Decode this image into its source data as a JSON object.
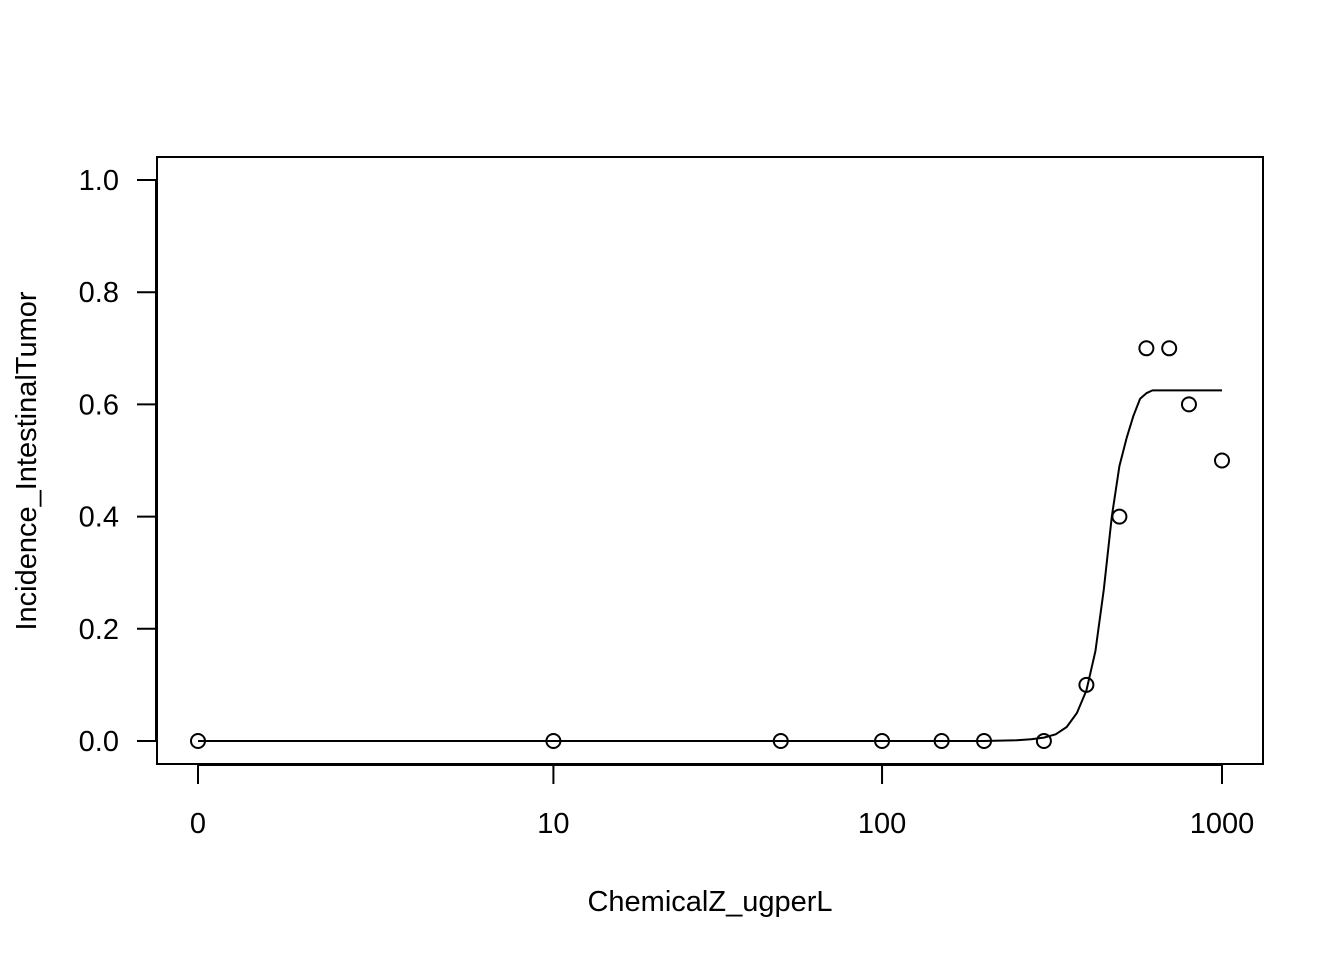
{
  "chart_data": {
    "type": "scatter",
    "xlabel": "ChemicalZ_ugperL",
    "ylabel": "Incidence_IntestinalTumor",
    "x_scale": "log (log10(dose+1))",
    "x_ticks": [
      0,
      10,
      100,
      1000
    ],
    "x_tick_labels": [
      "0",
      "10",
      "100",
      "1000"
    ],
    "y_ticks": [
      0.0,
      0.2,
      0.4,
      0.6,
      0.8,
      1.0
    ],
    "y_tick_labels": [
      "0.0",
      "0.2",
      "0.4",
      "0.6",
      "0.8",
      "1.0"
    ],
    "ylim": [
      -0.04,
      1.04
    ],
    "grid": false,
    "legend": "none",
    "series": [
      {
        "kind": "points",
        "marker": "open-circle",
        "x": [
          0,
          10,
          50,
          100,
          150,
          200,
          300,
          400,
          500,
          600,
          700,
          800,
          1000
        ],
        "y": [
          0.0,
          0.0,
          0.0,
          0.0,
          0.0,
          0.0,
          0.0,
          0.1,
          0.4,
          0.7,
          0.7,
          0.6,
          0.5
        ]
      },
      {
        "kind": "line",
        "x": [
          0,
          10,
          50,
          100,
          150,
          200,
          250,
          275,
          300,
          325,
          350,
          375,
          400,
          425,
          450,
          475,
          500,
          525,
          550,
          575,
          600,
          625,
          700,
          800,
          1000
        ],
        "y": [
          0.0,
          0.0,
          0.0,
          0.0,
          0.0,
          0.0,
          0.0015,
          0.003,
          0.006,
          0.012,
          0.025,
          0.05,
          0.09,
          0.16,
          0.27,
          0.4,
          0.49,
          0.54,
          0.58,
          0.61,
          0.62,
          0.625,
          0.625,
          0.625,
          0.625
        ]
      }
    ]
  }
}
